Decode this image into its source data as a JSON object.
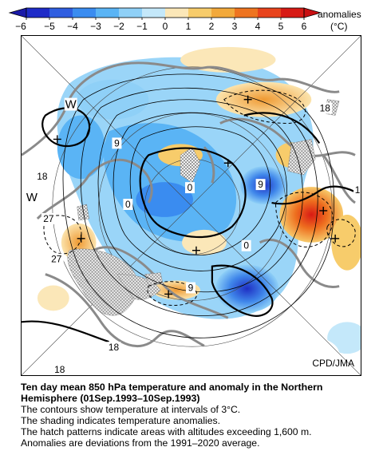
{
  "legend": {
    "ticks": [
      "−6",
      "−5",
      "−4",
      "−3",
      "−2",
      "−1",
      "0",
      "1",
      "2",
      "3",
      "4",
      "5",
      "6"
    ],
    "label_line1": "anomalies",
    "label_line2": "(°C)",
    "colors": [
      "#1e2bc8",
      "#2f5ee0",
      "#3a8cf0",
      "#5ab4f5",
      "#8fd0f7",
      "#c4e8fa",
      "#fbe7b8",
      "#f7cc6b",
      "#f2a93b",
      "#ee7420",
      "#e8431c",
      "#d71a15"
    ]
  },
  "map": {
    "contour_labels": [
      "W",
      "W",
      "9",
      "18",
      "0",
      "27",
      "27",
      "9",
      "0",
      "9",
      "18",
      "18",
      "0",
      "18",
      "1"
    ],
    "credit": "CPD/JMA"
  },
  "caption": {
    "title_line1": "Ten day mean 850 hPa temperature and anomaly in the Northern",
    "title_line2": "Hemisphere (01Sep.1993–10Sep.1993)",
    "line1": "The contours show temperature at intervals of 3°C.",
    "line2": "The shading indicates temperature anomalies.",
    "line3": "The hatch patterns indicate areas with altitudes exceeding 1,600 m.",
    "line4": "Anomalies are deviations from the 1991–2020 average."
  }
}
